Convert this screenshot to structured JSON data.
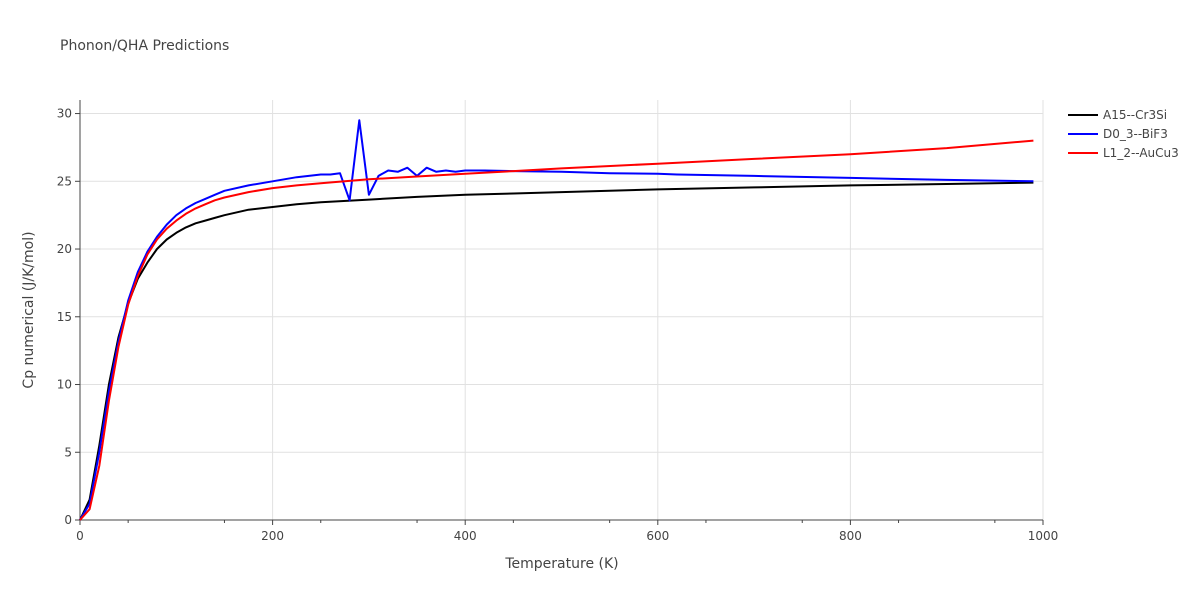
{
  "chart_data": {
    "type": "line",
    "title": "Phonon/QHA Predictions",
    "xlabel": "Temperature (K)",
    "ylabel": "Cp numerical (J/K/mol)",
    "xlim": [
      0,
      1000
    ],
    "ylim": [
      0,
      31
    ],
    "xticks": [
      0,
      200,
      400,
      600,
      800,
      1000
    ],
    "yticks": [
      0,
      5,
      10,
      15,
      20,
      25,
      30
    ],
    "grid": true,
    "legend_position": "top-right",
    "series": [
      {
        "name": "A15--Cr3Si",
        "color": "#000000",
        "x": [
          0,
          10,
          20,
          30,
          40,
          50,
          60,
          70,
          80,
          90,
          100,
          110,
          120,
          130,
          140,
          150,
          175,
          200,
          225,
          250,
          300,
          350,
          400,
          450,
          500,
          600,
          700,
          800,
          900,
          990
        ],
        "y": [
          0,
          1.5,
          5.5,
          10.0,
          13.5,
          16.0,
          17.8,
          19.0,
          20.0,
          20.7,
          21.2,
          21.6,
          21.9,
          22.1,
          22.3,
          22.5,
          22.9,
          23.1,
          23.3,
          23.45,
          23.65,
          23.85,
          24.0,
          24.1,
          24.2,
          24.4,
          24.55,
          24.7,
          24.8,
          24.9
        ]
      },
      {
        "name": "D0_3--BiF3",
        "color": "#0000ff",
        "x": [
          0,
          10,
          20,
          30,
          40,
          50,
          60,
          70,
          80,
          90,
          100,
          110,
          120,
          130,
          140,
          150,
          175,
          200,
          225,
          250,
          260,
          270,
          280,
          290,
          300,
          310,
          320,
          330,
          340,
          350,
          360,
          370,
          380,
          390,
          400,
          420,
          450,
          500,
          550,
          600,
          620,
          700,
          800,
          900,
          990
        ],
        "y": [
          0,
          1.2,
          5.0,
          9.5,
          13.2,
          16.2,
          18.3,
          19.8,
          20.9,
          21.8,
          22.5,
          23.0,
          23.4,
          23.7,
          24.0,
          24.3,
          24.7,
          25.0,
          25.3,
          25.5,
          25.5,
          25.6,
          23.6,
          29.5,
          24.0,
          25.4,
          25.8,
          25.7,
          26.0,
          25.4,
          26.0,
          25.7,
          25.8,
          25.7,
          25.8,
          25.8,
          25.75,
          25.7,
          25.6,
          25.55,
          25.5,
          25.4,
          25.25,
          25.1,
          25.0
        ]
      },
      {
        "name": "L1_2--AuCu3",
        "color": "#ff0000",
        "x": [
          0,
          10,
          20,
          30,
          40,
          50,
          60,
          70,
          80,
          90,
          100,
          110,
          120,
          130,
          140,
          150,
          175,
          200,
          225,
          250,
          275,
          300,
          350,
          400,
          450,
          500,
          600,
          700,
          800,
          900,
          990
        ],
        "y": [
          0,
          0.8,
          4.0,
          8.8,
          12.8,
          15.9,
          18.0,
          19.6,
          20.7,
          21.5,
          22.1,
          22.6,
          23.0,
          23.3,
          23.6,
          23.8,
          24.2,
          24.5,
          24.7,
          24.85,
          25.0,
          25.15,
          25.35,
          25.55,
          25.75,
          25.95,
          26.3,
          26.65,
          27.0,
          27.45,
          28.0
        ]
      }
    ]
  }
}
